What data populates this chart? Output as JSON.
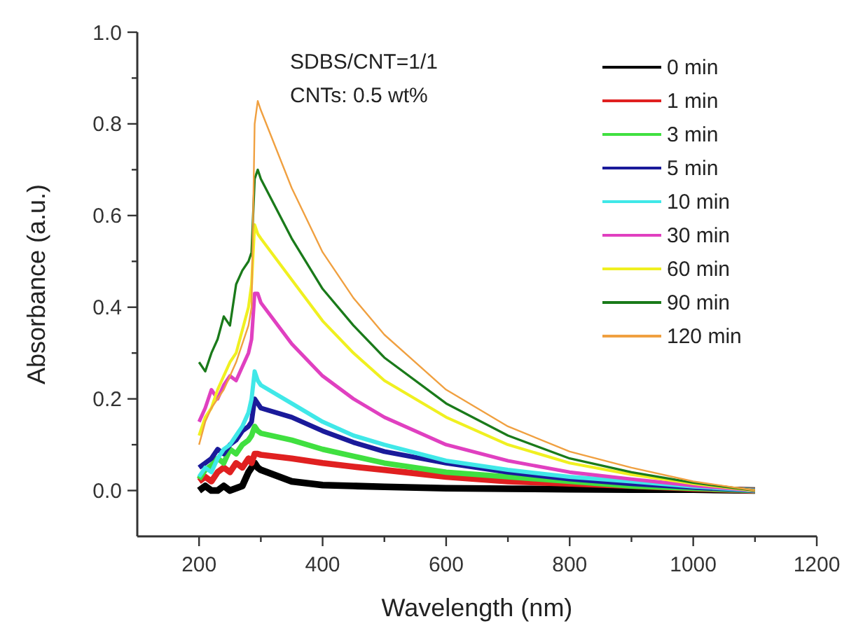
{
  "chart_data": {
    "type": "line",
    "xlabel": "Wavelength (nm)",
    "ylabel": "Absorbance (a.u.)",
    "annotations": [
      "SDBS/CNT=1/1",
      "CNTs: 0.5 wt%"
    ],
    "xlim": [
      100,
      1200
    ],
    "ylim": [
      -0.1,
      1.0
    ],
    "xticks": [
      200,
      {
        "value": 300,
        "label": null
      },
      400,
      {
        "value": 500,
        "label": null
      },
      600,
      {
        "value": 700,
        "label": null
      },
      800,
      {
        "value": 900,
        "label": null
      },
      1000,
      {
        "value": 1100,
        "label": null
      },
      1200
    ],
    "yticks": [
      {
        "value": 0,
        "label": "0.0"
      },
      {
        "value": 0.1,
        "label": null
      },
      {
        "value": 0.2,
        "label": "0.2"
      },
      {
        "value": 0.3,
        "label": null
      },
      {
        "value": 0.4,
        "label": "0.4"
      },
      {
        "value": 0.5,
        "label": null
      },
      {
        "value": 0.6,
        "label": "0.6"
      },
      {
        "value": 0.7,
        "label": null
      },
      {
        "value": 0.8,
        "label": "0.8"
      },
      {
        "value": 0.9,
        "label": null
      },
      {
        "value": 1.0,
        "label": "1.0"
      }
    ],
    "grid": false,
    "legend": "top right",
    "marker": "none",
    "line_style": "solid",
    "x": [
      200,
      210,
      220,
      230,
      240,
      250,
      260,
      270,
      280,
      285,
      290,
      295,
      300,
      350,
      400,
      450,
      500,
      600,
      700,
      800,
      900,
      1000,
      1100
    ],
    "series": [
      {
        "name": "0 min",
        "color": "#000000",
        "values": [
          0.0,
          0.01,
          0.0,
          0.0,
          0.01,
          0.0,
          0.005,
          0.01,
          0.04,
          0.05,
          0.06,
          0.05,
          0.045,
          0.02,
          0.012,
          0.01,
          0.008,
          0.005,
          0.004,
          0.003,
          0.002,
          0.002,
          0.0
        ]
      },
      {
        "name": "1 min",
        "color": "#e02020",
        "values": [
          0.02,
          0.03,
          0.02,
          0.04,
          0.05,
          0.04,
          0.06,
          0.05,
          0.07,
          0.06,
          0.08,
          0.08,
          0.078,
          0.07,
          0.06,
          0.052,
          0.045,
          0.03,
          0.02,
          0.015,
          0.01,
          0.004,
          0.0
        ]
      },
      {
        "name": "3 min",
        "color": "#40e040",
        "values": [
          0.025,
          0.045,
          0.055,
          0.07,
          0.06,
          0.09,
          0.08,
          0.1,
          0.11,
          0.12,
          0.14,
          0.13,
          0.125,
          0.11,
          0.09,
          0.075,
          0.06,
          0.04,
          0.03,
          0.02,
          0.01,
          0.005,
          0.0
        ]
      },
      {
        "name": "5 min",
        "color": "#1a1a9a",
        "values": [
          0.05,
          0.06,
          0.07,
          0.09,
          0.08,
          0.1,
          0.11,
          0.13,
          0.14,
          0.15,
          0.2,
          0.19,
          0.18,
          0.16,
          0.13,
          0.105,
          0.085,
          0.06,
          0.04,
          0.025,
          0.015,
          0.007,
          0.0
        ]
      },
      {
        "name": "10 min",
        "color": "#40e8e8",
        "values": [
          0.03,
          0.05,
          0.04,
          0.07,
          0.09,
          0.1,
          0.12,
          0.14,
          0.17,
          0.2,
          0.26,
          0.24,
          0.23,
          0.19,
          0.15,
          0.12,
          0.1,
          0.065,
          0.045,
          0.03,
          0.02,
          0.009,
          0.0
        ]
      },
      {
        "name": "30 min",
        "color": "#e040c0",
        "values": [
          0.15,
          0.18,
          0.22,
          0.2,
          0.23,
          0.25,
          0.24,
          0.27,
          0.3,
          0.33,
          0.43,
          0.43,
          0.41,
          0.32,
          0.25,
          0.2,
          0.16,
          0.1,
          0.065,
          0.04,
          0.025,
          0.011,
          0.0
        ]
      },
      {
        "name": "60 min",
        "color": "#f0f020",
        "values": [
          0.12,
          0.16,
          0.18,
          0.22,
          0.25,
          0.28,
          0.3,
          0.35,
          0.4,
          0.45,
          0.58,
          0.56,
          0.55,
          0.46,
          0.37,
          0.3,
          0.24,
          0.16,
          0.1,
          0.06,
          0.035,
          0.015,
          0.0
        ]
      },
      {
        "name": "90 min",
        "color": "#1a7a1a",
        "values": [
          0.28,
          0.26,
          0.3,
          0.33,
          0.38,
          0.36,
          0.45,
          0.48,
          0.5,
          0.52,
          0.68,
          0.7,
          0.68,
          0.55,
          0.44,
          0.36,
          0.29,
          0.19,
          0.12,
          0.07,
          0.04,
          0.017,
          0.0
        ]
      },
      {
        "name": "120 min",
        "color": "#f0a040",
        "values": [
          0.1,
          0.15,
          0.18,
          0.2,
          0.22,
          0.25,
          0.28,
          0.32,
          0.36,
          0.4,
          0.8,
          0.85,
          0.83,
          0.66,
          0.52,
          0.42,
          0.34,
          0.22,
          0.14,
          0.085,
          0.05,
          0.02,
          0.0
        ]
      }
    ]
  }
}
